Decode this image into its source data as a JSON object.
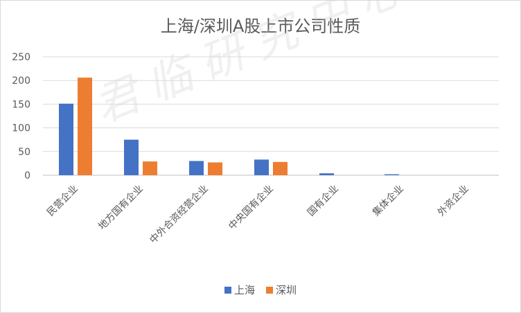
{
  "watermark": "君临研究中心",
  "chart_data": {
    "type": "bar",
    "title": "上海/深圳A股上市公司性质",
    "categories": [
      "民营企业",
      "地方国有企业",
      "中外合资经营企业",
      "中央国有企业",
      "国有企业",
      "集体企业",
      "外资企业"
    ],
    "series": [
      {
        "name": "上海",
        "color": "#4472c4",
        "values": [
          151,
          75,
          30,
          33,
          4,
          2,
          0
        ]
      },
      {
        "name": "深圳",
        "color": "#ed7d31",
        "values": [
          206,
          29,
          27,
          28,
          0,
          0,
          0
        ]
      }
    ],
    "yticks": [
      0,
      50,
      100,
      150,
      200,
      250
    ],
    "ylim": [
      0,
      250
    ],
    "grid": true,
    "legend_position": "bottom"
  }
}
